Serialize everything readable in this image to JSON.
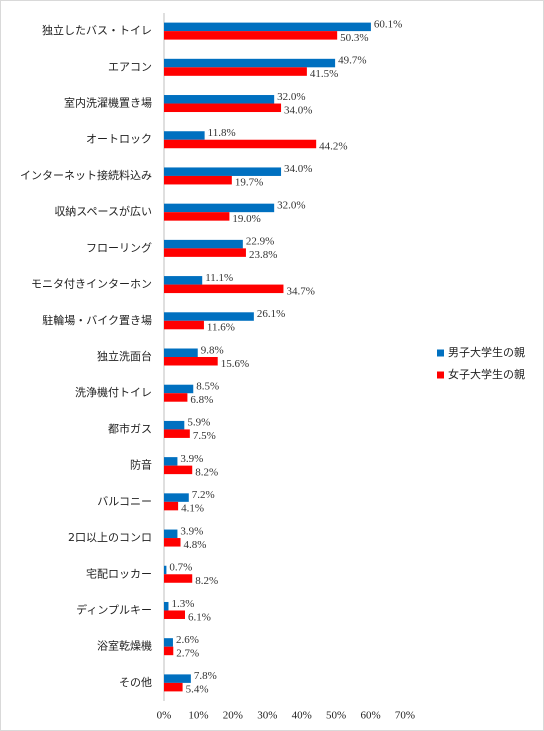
{
  "chart_data": {
    "type": "bar",
    "orientation": "horizontal",
    "categories": [
      "独立したバス・トイレ",
      "エアコン",
      "室内洗濯機置き場",
      "オートロック",
      "インターネット接続料込み",
      "収納スペースが広い",
      "フローリング",
      "モニタ付きインターホン",
      "駐輪場・バイク置き場",
      "独立洗面台",
      "洗浄機付トイレ",
      "都市ガス",
      "防音",
      "バルコニー",
      "2口以上のコンロ",
      "宅配ロッカー",
      "ディンプルキー",
      "浴室乾燥機",
      "その他"
    ],
    "series": [
      {
        "name": "男子大学生の親",
        "color": "#0070c0",
        "values": [
          60.1,
          49.7,
          32.0,
          11.8,
          34.0,
          32.0,
          22.9,
          11.1,
          26.1,
          9.8,
          8.5,
          5.9,
          3.9,
          7.2,
          3.9,
          0.7,
          1.3,
          2.6,
          7.8
        ],
        "value_labels": [
          "60.1%",
          "49.7%",
          "32.0%",
          "11.8%",
          "34.0%",
          "32.0%",
          "22.9%",
          "11.1%",
          "26.1%",
          "9.8%",
          "8.5%",
          "5.9%",
          "3.9%",
          "7.2%",
          "3.9%",
          "0.7%",
          "1.3%",
          "2.6%",
          "7.8%"
        ]
      },
      {
        "name": "女子大学生の親",
        "color": "#ff0000",
        "values": [
          50.3,
          41.5,
          34.0,
          44.2,
          19.7,
          19.0,
          23.8,
          34.7,
          11.6,
          15.6,
          6.8,
          7.5,
          8.2,
          4.1,
          4.8,
          8.2,
          6.1,
          2.7,
          5.4
        ],
        "value_labels": [
          "50.3%",
          "41.5%",
          "34.0%",
          "44.2%",
          "19.7%",
          "19.0%",
          "23.8%",
          "34.7%",
          "11.6%",
          "15.6%",
          "6.8%",
          "7.5%",
          "8.2%",
          "4.1%",
          "4.8%",
          "8.2%",
          "6.1%",
          "2.7%",
          "5.4%"
        ]
      }
    ],
    "xlim": [
      0,
      70
    ],
    "xticks": [
      {
        "value": 0,
        "label": "0%"
      },
      {
        "value": 10,
        "label": "10%"
      },
      {
        "value": 20,
        "label": "20%"
      },
      {
        "value": 30,
        "label": "30%"
      },
      {
        "value": 40,
        "label": "40%"
      },
      {
        "value": 50,
        "label": "50%"
      },
      {
        "value": 60,
        "label": "60%"
      },
      {
        "value": 70,
        "label": "70%"
      }
    ],
    "grid": false,
    "legend": "right"
  }
}
